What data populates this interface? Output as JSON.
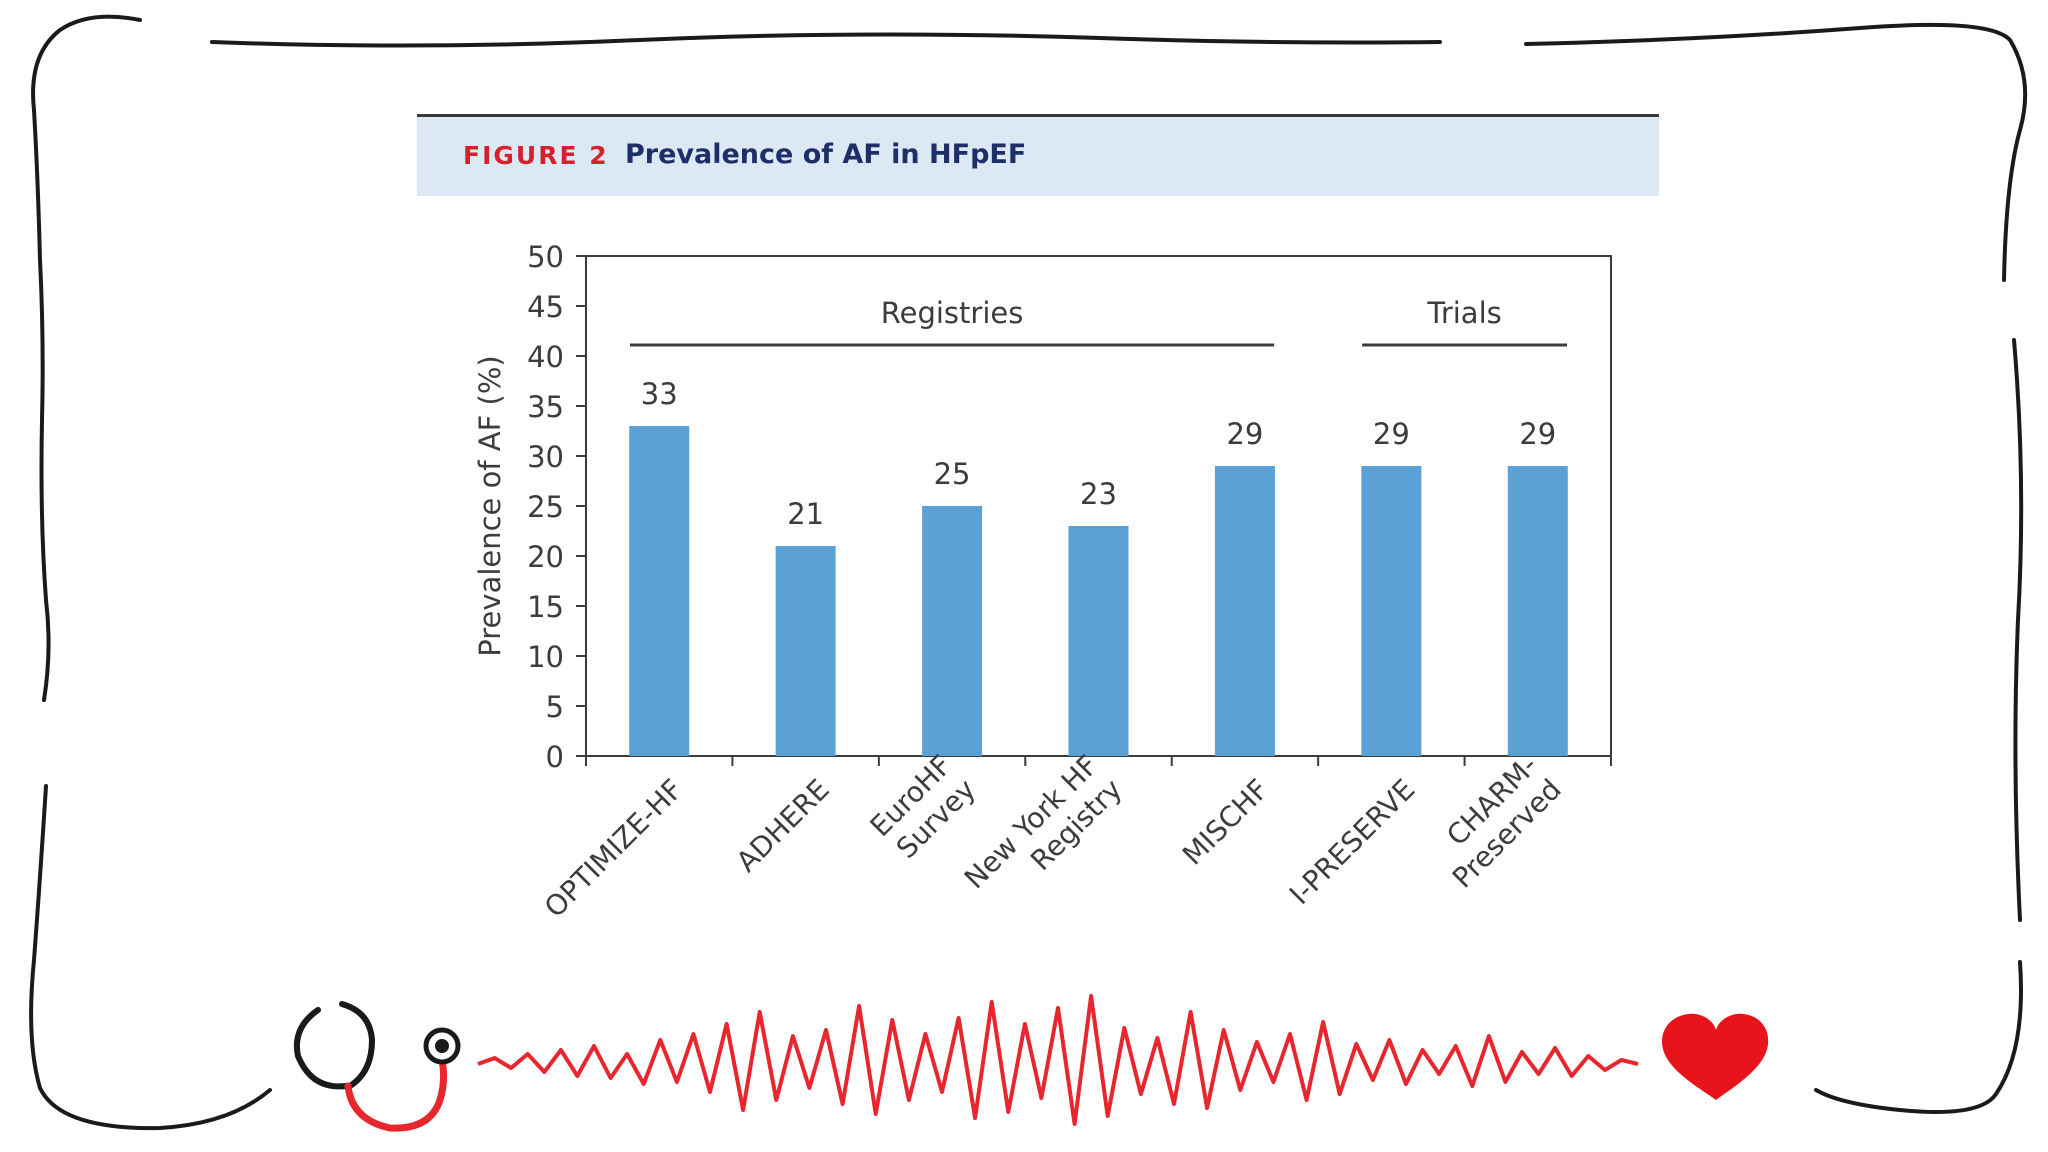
{
  "figure": {
    "label": "FIGURE 2",
    "title": "Prevalence of AF in HFpEF"
  },
  "colors": {
    "bar": "#5aa2d6",
    "header_bg": "#dde8f5",
    "label_red": "#d6202e",
    "title_navy": "#1d2f68",
    "ecg": "#e8262e",
    "heart": "#e8141c"
  },
  "icons": [
    "stethoscope-icon",
    "ecg-line",
    "heart-icon"
  ],
  "chart_data": {
    "type": "bar",
    "ylabel": "Prevalence of AF (%)",
    "ylim": [
      0,
      50
    ],
    "yticks": [
      0,
      5,
      10,
      15,
      20,
      25,
      30,
      35,
      40,
      45,
      50
    ],
    "categories": [
      "OPTIMIZE-HF",
      "ADHERE",
      "EuroHF Survey",
      "New York HF Registry",
      "MISCHF",
      "I-PRESERVE",
      "CHARM-Preserved"
    ],
    "category_lines": [
      [
        "OPTIMIZE-HF"
      ],
      [
        "ADHERE"
      ],
      [
        "EuroHF",
        "Survey"
      ],
      [
        "New York HF",
        "Registry"
      ],
      [
        "MISCHF"
      ],
      [
        "I-PRESERVE"
      ],
      [
        "CHARM-",
        "Preserved"
      ]
    ],
    "values": [
      33,
      21,
      25,
      23,
      29,
      29,
      29
    ],
    "data_labels": [
      "33",
      "21",
      "25",
      "23",
      "29",
      "29",
      "29"
    ],
    "groups": [
      {
        "label": "Registries",
        "categories": [
          "OPTIMIZE-HF",
          "ADHERE",
          "EuroHF Survey",
          "New York HF Registry",
          "MISCHF"
        ]
      },
      {
        "label": "Trials",
        "categories": [
          "I-PRESERVE",
          "CHARM-Preserved"
        ]
      }
    ],
    "grid": false,
    "legend": "none"
  }
}
